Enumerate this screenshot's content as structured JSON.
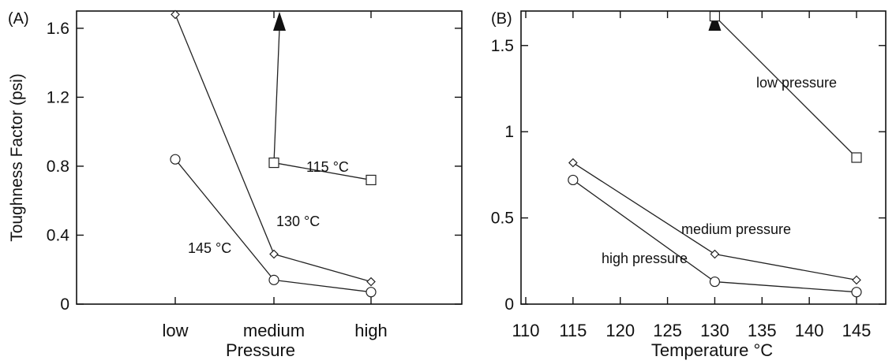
{
  "chart_data": [
    {
      "panel_label": "(A)",
      "type": "line",
      "xlabel": "Pressure",
      "ylabel": "Toughness Factor (psi)",
      "categories": [
        "low",
        "medium",
        "high"
      ],
      "ylim": [
        0,
        1.7
      ],
      "yticks": [
        0,
        0.4,
        0.8,
        1.2,
        1.6
      ],
      "ytick_labels": [
        "0",
        "0.4",
        "0.8",
        "1.2",
        "1.6"
      ],
      "grid": false,
      "series": [
        {
          "name": "145 °C",
          "marker": "circle",
          "x": [
            "low",
            "medium",
            "high"
          ],
          "values": [
            0.84,
            0.14,
            0.07
          ]
        },
        {
          "name": "130 °C",
          "marker": "diamond",
          "x": [
            "low",
            "medium",
            "high"
          ],
          "values": [
            1.68,
            0.29,
            0.13
          ]
        },
        {
          "name": "115 °C",
          "marker": "square",
          "x": [
            "medium",
            "high"
          ],
          "values": [
            0.82,
            0.72
          ],
          "arrow_from": "medium"
        }
      ]
    },
    {
      "panel_label": "(B)",
      "type": "line",
      "xlabel": "Temperature °C",
      "ylabel": "",
      "xlim": [
        110,
        145
      ],
      "xticks": [
        110,
        115,
        120,
        125,
        130,
        135,
        140,
        145
      ],
      "xtick_labels": [
        "110",
        "115",
        "120",
        "125",
        "130",
        "135",
        "140",
        "145"
      ],
      "ylim": [
        0,
        1.7
      ],
      "yticks": [
        0,
        0.5,
        1,
        1.5
      ],
      "ytick_labels": [
        "0",
        "0.5",
        "1",
        "1.5"
      ],
      "grid": false,
      "series": [
        {
          "name": "high pressure",
          "marker": "circle",
          "x": [
            115,
            130,
            145
          ],
          "values": [
            0.72,
            0.13,
            0.07
          ]
        },
        {
          "name": "medium pressure",
          "marker": "diamond",
          "x": [
            115,
            130,
            145
          ],
          "values": [
            0.82,
            0.29,
            0.14
          ]
        },
        {
          "name": "low pressure",
          "marker": "square",
          "x": [
            130,
            145
          ],
          "values": [
            1.67,
            0.85
          ],
          "arrow_from": 130
        }
      ]
    }
  ]
}
